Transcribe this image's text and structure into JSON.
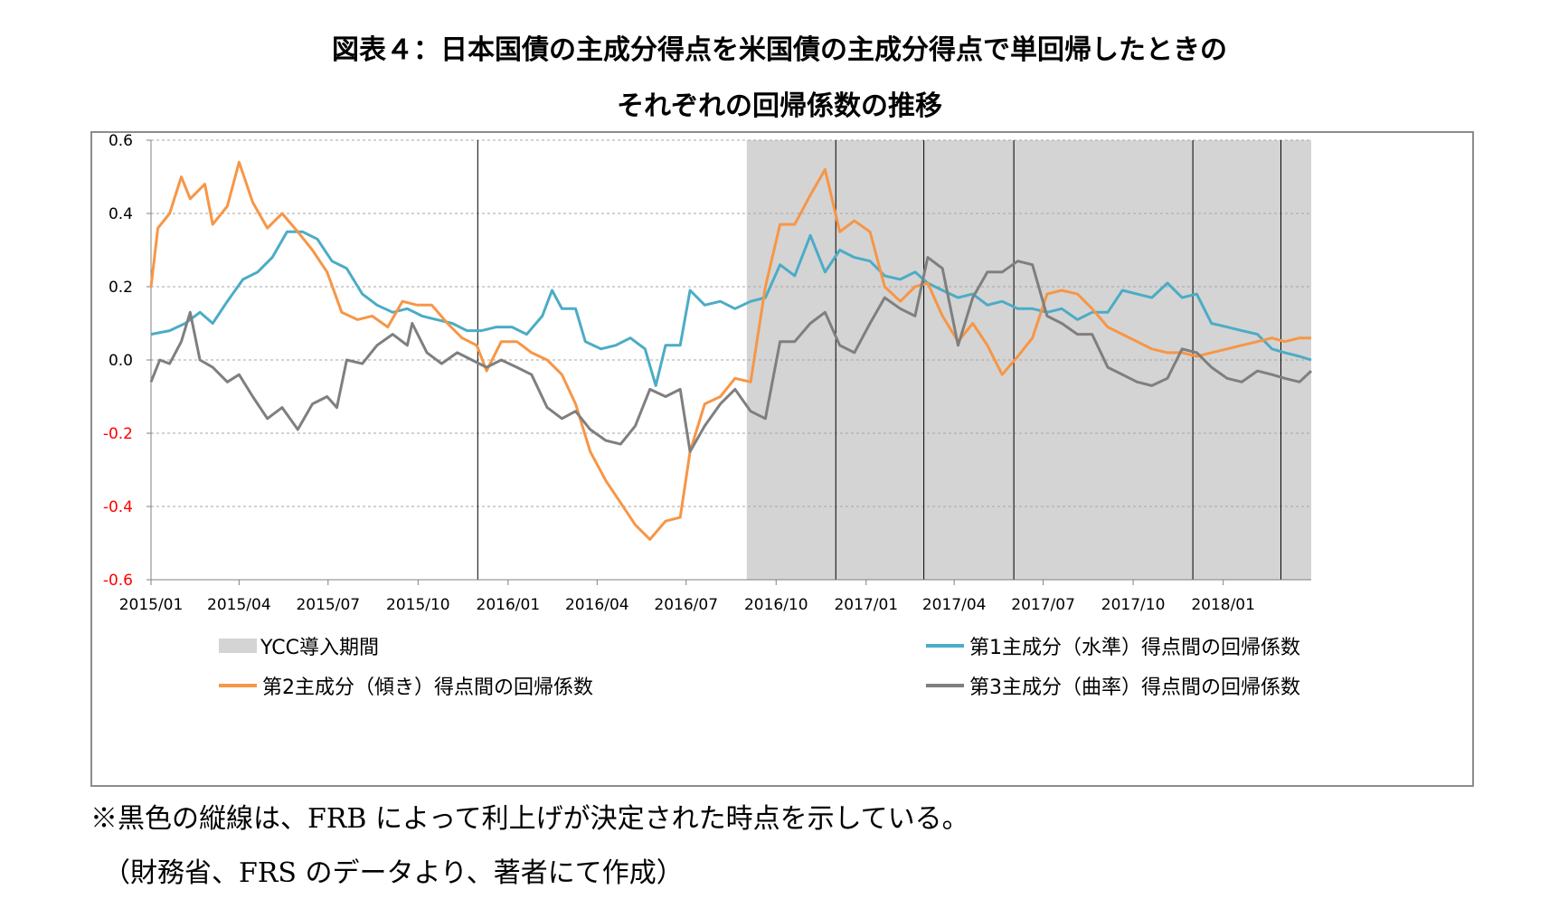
{
  "title": {
    "line1": "図表４：日本国債の主成分得点を米国債の主成分得点で単回帰したときの",
    "line2": "それぞれの回帰係数の推移"
  },
  "notes": {
    "line1": "※黒色の縦線は、FRB によって利上げが決定された時点を示している。",
    "line2": "（財務省、FRS のデータより、著者にて作成）"
  },
  "colors": {
    "series1": "#4bacc6",
    "series2": "#f79646",
    "series3": "#7f7f7f",
    "ycc_shade": "#d4d4d4",
    "negative_tick": "#ff0000",
    "frb_line": "#000000"
  },
  "legend": {
    "ycc": "YCC導入期間",
    "s1": "第1主成分（水準）得点間の回帰係数",
    "s2": "第2主成分（傾き）得点間の回帰係数",
    "s3": "第3主成分（曲率）得点間の回帰係数"
  },
  "chart_data": {
    "type": "line",
    "x_start": "2015-01",
    "x_end": "2018-04",
    "x_ticks": [
      "2015/01",
      "2015/04",
      "2015/07",
      "2015/10",
      "2016/01",
      "2016/04",
      "2016/07",
      "2016/10",
      "2017/01",
      "2017/04",
      "2017/07",
      "2017/10",
      "2018/01"
    ],
    "y_ticks": [
      "0.6",
      "0.4",
      "0.2",
      "0.0",
      "-0.2",
      "-0.4",
      "-0.6"
    ],
    "ylim": [
      -0.6,
      0.6
    ],
    "grid": "horizontal dashed",
    "legend_position": "bottom",
    "ycc_period": {
      "start": "2016-09",
      "end": "2018-04"
    },
    "frb_rate_hikes": [
      "2015-12",
      "2016-12",
      "2017-03",
      "2017-06",
      "2017-12",
      "2018-03"
    ],
    "series": [
      {
        "name": "第1主成分（水準）得点間の回帰係数",
        "color": "#4bacc6",
        "points": [
          [
            "2015-01-01",
            0.07
          ],
          [
            "2015-01-20",
            0.08
          ],
          [
            "2015-02-05",
            0.1
          ],
          [
            "2015-02-20",
            0.13
          ],
          [
            "2015-03-05",
            0.1
          ],
          [
            "2015-03-20",
            0.16
          ],
          [
            "2015-04-05",
            0.22
          ],
          [
            "2015-04-20",
            0.24
          ],
          [
            "2015-05-05",
            0.28
          ],
          [
            "2015-05-20",
            0.35
          ],
          [
            "2015-06-05",
            0.35
          ],
          [
            "2015-06-20",
            0.33
          ],
          [
            "2015-07-05",
            0.27
          ],
          [
            "2015-07-20",
            0.25
          ],
          [
            "2015-08-05",
            0.18
          ],
          [
            "2015-08-20",
            0.15
          ],
          [
            "2015-09-05",
            0.13
          ],
          [
            "2015-09-20",
            0.14
          ],
          [
            "2015-10-05",
            0.12
          ],
          [
            "2015-10-20",
            0.11
          ],
          [
            "2015-11-05",
            0.1
          ],
          [
            "2015-11-20",
            0.08
          ],
          [
            "2015-12-05",
            0.08
          ],
          [
            "2015-12-20",
            0.09
          ],
          [
            "2016-01-05",
            0.09
          ],
          [
            "2016-01-20",
            0.07
          ],
          [
            "2016-02-05",
            0.12
          ],
          [
            "2016-02-15",
            0.19
          ],
          [
            "2016-02-25",
            0.14
          ],
          [
            "2016-03-10",
            0.14
          ],
          [
            "2016-03-20",
            0.05
          ],
          [
            "2016-04-05",
            0.03
          ],
          [
            "2016-04-20",
            0.04
          ],
          [
            "2016-05-05",
            0.06
          ],
          [
            "2016-05-20",
            0.03
          ],
          [
            "2016-05-31",
            -0.07
          ],
          [
            "2016-06-10",
            0.04
          ],
          [
            "2016-06-25",
            0.04
          ],
          [
            "2016-07-05",
            0.19
          ],
          [
            "2016-07-20",
            0.15
          ],
          [
            "2016-08-05",
            0.16
          ],
          [
            "2016-08-20",
            0.14
          ],
          [
            "2016-09-05",
            0.16
          ],
          [
            "2016-09-20",
            0.17
          ],
          [
            "2016-10-05",
            0.26
          ],
          [
            "2016-10-20",
            0.23
          ],
          [
            "2016-11-05",
            0.34
          ],
          [
            "2016-11-20",
            0.24
          ],
          [
            "2016-12-05",
            0.3
          ],
          [
            "2016-12-20",
            0.28
          ],
          [
            "2017-01-05",
            0.27
          ],
          [
            "2017-01-20",
            0.23
          ],
          [
            "2017-02-05",
            0.22
          ],
          [
            "2017-02-20",
            0.24
          ],
          [
            "2017-03-05",
            0.21
          ],
          [
            "2017-03-20",
            0.19
          ],
          [
            "2017-04-05",
            0.17
          ],
          [
            "2017-04-20",
            0.18
          ],
          [
            "2017-05-05",
            0.15
          ],
          [
            "2017-05-20",
            0.16
          ],
          [
            "2017-06-05",
            0.14
          ],
          [
            "2017-06-20",
            0.14
          ],
          [
            "2017-07-05",
            0.13
          ],
          [
            "2017-07-20",
            0.14
          ],
          [
            "2017-08-05",
            0.11
          ],
          [
            "2017-08-20",
            0.13
          ],
          [
            "2017-09-05",
            0.13
          ],
          [
            "2017-09-20",
            0.19
          ],
          [
            "2017-10-05",
            0.18
          ],
          [
            "2017-10-20",
            0.17
          ],
          [
            "2017-11-05",
            0.21
          ],
          [
            "2017-11-20",
            0.17
          ],
          [
            "2017-12-05",
            0.18
          ],
          [
            "2017-12-20",
            0.1
          ],
          [
            "2018-01-05",
            0.09
          ],
          [
            "2018-01-20",
            0.08
          ],
          [
            "2018-02-05",
            0.07
          ],
          [
            "2018-02-20",
            0.03
          ],
          [
            "2018-03-05",
            0.02
          ],
          [
            "2018-03-20",
            0.01
          ],
          [
            "2018-04-01",
            0.0
          ]
        ]
      },
      {
        "name": "第2主成分（傾き）得点間の回帰係数",
        "color": "#f79646",
        "points": [
          [
            "2015-01-01",
            0.2
          ],
          [
            "2015-01-08",
            0.36
          ],
          [
            "2015-01-20",
            0.4
          ],
          [
            "2015-02-01",
            0.5
          ],
          [
            "2015-02-10",
            0.44
          ],
          [
            "2015-02-25",
            0.48
          ],
          [
            "2015-03-05",
            0.37
          ],
          [
            "2015-03-20",
            0.42
          ],
          [
            "2015-04-01",
            0.54
          ],
          [
            "2015-04-15",
            0.43
          ],
          [
            "2015-04-30",
            0.36
          ],
          [
            "2015-05-15",
            0.4
          ],
          [
            "2015-05-31",
            0.35
          ],
          [
            "2015-06-15",
            0.3
          ],
          [
            "2015-06-30",
            0.24
          ],
          [
            "2015-07-15",
            0.13
          ],
          [
            "2015-07-31",
            0.11
          ],
          [
            "2015-08-15",
            0.12
          ],
          [
            "2015-08-31",
            0.09
          ],
          [
            "2015-09-15",
            0.16
          ],
          [
            "2015-09-30",
            0.15
          ],
          [
            "2015-10-15",
            0.15
          ],
          [
            "2015-10-31",
            0.1
          ],
          [
            "2015-11-15",
            0.06
          ],
          [
            "2015-11-30",
            0.04
          ],
          [
            "2015-12-10",
            -0.03
          ],
          [
            "2015-12-25",
            0.05
          ],
          [
            "2016-01-10",
            0.05
          ],
          [
            "2016-01-25",
            0.02
          ],
          [
            "2016-02-10",
            0.0
          ],
          [
            "2016-02-25",
            -0.04
          ],
          [
            "2016-03-10",
            -0.12
          ],
          [
            "2016-03-25",
            -0.25
          ],
          [
            "2016-04-10",
            -0.33
          ],
          [
            "2016-04-25",
            -0.39
          ],
          [
            "2016-05-10",
            -0.45
          ],
          [
            "2016-05-25",
            -0.49
          ],
          [
            "2016-06-10",
            -0.44
          ],
          [
            "2016-06-25",
            -0.43
          ],
          [
            "2016-07-05",
            -0.25
          ],
          [
            "2016-07-20",
            -0.12
          ],
          [
            "2016-08-05",
            -0.1
          ],
          [
            "2016-08-20",
            -0.05
          ],
          [
            "2016-09-05",
            -0.06
          ],
          [
            "2016-09-20",
            0.2
          ],
          [
            "2016-10-05",
            0.37
          ],
          [
            "2016-10-20",
            0.37
          ],
          [
            "2016-11-05",
            0.45
          ],
          [
            "2016-11-20",
            0.52
          ],
          [
            "2016-12-05",
            0.35
          ],
          [
            "2016-12-20",
            0.38
          ],
          [
            "2017-01-05",
            0.35
          ],
          [
            "2017-01-20",
            0.2
          ],
          [
            "2017-02-05",
            0.16
          ],
          [
            "2017-02-20",
            0.2
          ],
          [
            "2017-03-05",
            0.21
          ],
          [
            "2017-03-20",
            0.12
          ],
          [
            "2017-04-05",
            0.05
          ],
          [
            "2017-04-20",
            0.1
          ],
          [
            "2017-05-05",
            0.04
          ],
          [
            "2017-05-20",
            -0.04
          ],
          [
            "2017-06-05",
            0.01
          ],
          [
            "2017-06-20",
            0.06
          ],
          [
            "2017-07-05",
            0.18
          ],
          [
            "2017-07-20",
            0.19
          ],
          [
            "2017-08-05",
            0.18
          ],
          [
            "2017-08-20",
            0.14
          ],
          [
            "2017-09-05",
            0.09
          ],
          [
            "2017-09-20",
            0.07
          ],
          [
            "2017-10-05",
            0.05
          ],
          [
            "2017-10-20",
            0.03
          ],
          [
            "2017-11-05",
            0.02
          ],
          [
            "2017-11-20",
            0.02
          ],
          [
            "2017-12-05",
            0.01
          ],
          [
            "2017-12-20",
            0.02
          ],
          [
            "2018-01-05",
            0.03
          ],
          [
            "2018-01-20",
            0.04
          ],
          [
            "2018-02-05",
            0.05
          ],
          [
            "2018-02-20",
            0.06
          ],
          [
            "2018-03-05",
            0.05
          ],
          [
            "2018-03-20",
            0.06
          ],
          [
            "2018-04-01",
            0.06
          ]
        ]
      },
      {
        "name": "第3主成分（曲率）得点間の回帰係数",
        "color": "#7f7f7f",
        "points": [
          [
            "2015-01-01",
            -0.06
          ],
          [
            "2015-01-10",
            0.0
          ],
          [
            "2015-01-20",
            -0.01
          ],
          [
            "2015-02-01",
            0.05
          ],
          [
            "2015-02-10",
            0.13
          ],
          [
            "2015-02-20",
            0.0
          ],
          [
            "2015-03-05",
            -0.02
          ],
          [
            "2015-03-20",
            -0.06
          ],
          [
            "2015-04-01",
            -0.04
          ],
          [
            "2015-04-15",
            -0.1
          ],
          [
            "2015-04-30",
            -0.16
          ],
          [
            "2015-05-15",
            -0.13
          ],
          [
            "2015-05-31",
            -0.19
          ],
          [
            "2015-06-15",
            -0.12
          ],
          [
            "2015-06-30",
            -0.1
          ],
          [
            "2015-07-10",
            -0.13
          ],
          [
            "2015-07-20",
            0.0
          ],
          [
            "2015-08-05",
            -0.01
          ],
          [
            "2015-08-20",
            0.04
          ],
          [
            "2015-09-05",
            0.07
          ],
          [
            "2015-09-20",
            0.04
          ],
          [
            "2015-09-25",
            0.1
          ],
          [
            "2015-10-10",
            0.02
          ],
          [
            "2015-10-25",
            -0.01
          ],
          [
            "2015-11-10",
            0.02
          ],
          [
            "2015-11-25",
            0.0
          ],
          [
            "2015-12-10",
            -0.02
          ],
          [
            "2015-12-25",
            0.0
          ],
          [
            "2016-01-10",
            -0.02
          ],
          [
            "2016-01-25",
            -0.04
          ],
          [
            "2016-02-10",
            -0.13
          ],
          [
            "2016-02-25",
            -0.16
          ],
          [
            "2016-03-10",
            -0.14
          ],
          [
            "2016-03-25",
            -0.19
          ],
          [
            "2016-04-10",
            -0.22
          ],
          [
            "2016-04-25",
            -0.23
          ],
          [
            "2016-05-10",
            -0.18
          ],
          [
            "2016-05-25",
            -0.08
          ],
          [
            "2016-06-10",
            -0.1
          ],
          [
            "2016-06-25",
            -0.08
          ],
          [
            "2016-07-05",
            -0.25
          ],
          [
            "2016-07-20",
            -0.18
          ],
          [
            "2016-08-05",
            -0.12
          ],
          [
            "2016-08-20",
            -0.08
          ],
          [
            "2016-09-05",
            -0.14
          ],
          [
            "2016-09-20",
            -0.16
          ],
          [
            "2016-10-05",
            0.05
          ],
          [
            "2016-10-20",
            0.05
          ],
          [
            "2016-11-05",
            0.1
          ],
          [
            "2016-11-20",
            0.13
          ],
          [
            "2016-12-05",
            0.04
          ],
          [
            "2016-12-20",
            0.02
          ],
          [
            "2017-01-05",
            0.1
          ],
          [
            "2017-01-20",
            0.17
          ],
          [
            "2017-02-05",
            0.14
          ],
          [
            "2017-02-20",
            0.12
          ],
          [
            "2017-03-05",
            0.28
          ],
          [
            "2017-03-20",
            0.25
          ],
          [
            "2017-04-05",
            0.04
          ],
          [
            "2017-04-20",
            0.17
          ],
          [
            "2017-05-05",
            0.24
          ],
          [
            "2017-05-20",
            0.24
          ],
          [
            "2017-06-05",
            0.27
          ],
          [
            "2017-06-20",
            0.26
          ],
          [
            "2017-07-05",
            0.12
          ],
          [
            "2017-07-20",
            0.1
          ],
          [
            "2017-08-05",
            0.07
          ],
          [
            "2017-08-20",
            0.07
          ],
          [
            "2017-09-05",
            -0.02
          ],
          [
            "2017-09-20",
            -0.04
          ],
          [
            "2017-10-05",
            -0.06
          ],
          [
            "2017-10-20",
            -0.07
          ],
          [
            "2017-11-05",
            -0.05
          ],
          [
            "2017-11-20",
            0.03
          ],
          [
            "2017-12-05",
            0.02
          ],
          [
            "2017-12-20",
            -0.02
          ],
          [
            "2018-01-05",
            -0.05
          ],
          [
            "2018-01-20",
            -0.06
          ],
          [
            "2018-02-05",
            -0.03
          ],
          [
            "2018-02-20",
            -0.04
          ],
          [
            "2018-03-05",
            -0.05
          ],
          [
            "2018-03-20",
            -0.06
          ],
          [
            "2018-04-01",
            -0.03
          ]
        ]
      }
    ]
  }
}
